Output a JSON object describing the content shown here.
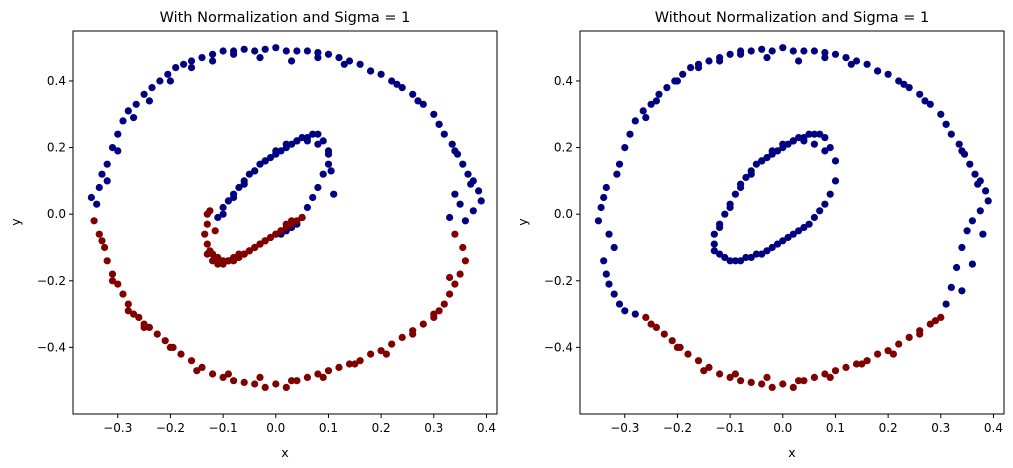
{
  "chart_data": [
    {
      "type": "scatter",
      "title": "With Normalization and Sigma = 1",
      "xlabel": "x",
      "ylabel": "y",
      "xlim": [
        -0.385,
        0.42
      ],
      "ylim": [
        -0.6,
        0.55
      ],
      "xticks": [
        -0.3,
        -0.2,
        -0.1,
        0.0,
        0.1,
        0.2,
        0.3,
        0.4
      ],
      "yticks": [
        -0.4,
        -0.2,
        0.0,
        0.2,
        0.4
      ],
      "xtick_labels": [
        "−0.3",
        "−0.2",
        "−0.1",
        "0.0",
        "0.1",
        "0.2",
        "0.3",
        "0.4"
      ],
      "ytick_labels": [
        "−0.4",
        "−0.2",
        "0.0",
        "0.2",
        "0.4"
      ],
      "grid": false,
      "legend": "none",
      "colors": {
        "class_0": "#000080",
        "class_1": "#800000"
      },
      "series": [
        {
          "color": "#000080",
          "x": [
            -0.35,
            -0.335,
            -0.33,
            -0.32,
            -0.31,
            -0.3,
            -0.29,
            -0.28,
            -0.265,
            -0.25,
            -0.235,
            -0.22,
            -0.205,
            -0.19,
            -0.175,
            -0.16,
            -0.14,
            -0.12,
            -0.1,
            -0.08,
            -0.06,
            -0.04,
            -0.02,
            0.0,
            0.02,
            0.04,
            0.06,
            0.08,
            0.1,
            0.12,
            0.14,
            0.16,
            0.18,
            0.2,
            0.22,
            0.24,
            0.26,
            0.28,
            0.3,
            0.31,
            0.32,
            0.335,
            0.345,
            0.355,
            0.365,
            0.375,
            0.385,
            0.39,
            0.375,
            0.36,
            0.35,
            0.34,
            0.33,
            -0.34,
            -0.32,
            -0.3,
            -0.27,
            -0.24,
            -0.2,
            -0.16,
            -0.12,
            -0.08,
            -0.03,
            0.03,
            0.08,
            0.13,
            0.18,
            0.23,
            0.27,
            0.31,
            0.34,
            0.37,
            -0.11,
            -0.1,
            -0.09,
            -0.08,
            -0.07,
            -0.06,
            -0.05,
            -0.04,
            -0.03,
            -0.02,
            -0.01,
            0.0,
            0.01,
            0.02,
            0.03,
            0.04,
            0.05,
            0.06,
            0.07,
            0.08,
            0.09,
            0.1,
            0.1,
            0.09,
            0.08,
            0.07,
            0.06,
            0.05,
            0.04,
            0.03,
            0.02,
            0.01,
            -0.1,
            -0.08,
            -0.06,
            -0.04,
            -0.02,
            0.0,
            0.02,
            0.04,
            0.06,
            0.08,
            0.1,
            0.105,
            0.11
          ],
          "y": [
            0.05,
            0.08,
            0.12,
            0.15,
            0.2,
            0.24,
            0.28,
            0.31,
            0.33,
            0.36,
            0.38,
            0.4,
            0.42,
            0.44,
            0.45,
            0.46,
            0.47,
            0.48,
            0.49,
            0.49,
            0.495,
            0.49,
            0.495,
            0.5,
            0.49,
            0.49,
            0.49,
            0.485,
            0.48,
            0.47,
            0.46,
            0.45,
            0.43,
            0.42,
            0.4,
            0.38,
            0.36,
            0.33,
            0.3,
            0.27,
            0.24,
            0.21,
            0.18,
            0.15,
            0.12,
            0.1,
            0.07,
            0.04,
            0.01,
            -0.02,
            0.03,
            0.06,
            -0.01,
            0.03,
            0.1,
            0.19,
            0.29,
            0.34,
            0.4,
            0.44,
            0.46,
            0.48,
            0.47,
            0.46,
            0.47,
            0.45,
            0.43,
            0.39,
            0.34,
            0.27,
            0.19,
            0.09,
            -0.01,
            0.02,
            0.04,
            0.06,
            0.08,
            0.1,
            0.12,
            0.13,
            0.15,
            0.16,
            0.17,
            0.18,
            0.19,
            0.2,
            0.21,
            0.22,
            0.23,
            0.23,
            0.24,
            0.24,
            0.22,
            0.18,
            0.15,
            0.12,
            0.08,
            0.05,
            0.02,
            -0.01,
            -0.03,
            -0.04,
            -0.05,
            -0.06,
            0.0,
            0.05,
            0.09,
            0.13,
            0.16,
            0.19,
            0.21,
            0.22,
            0.22,
            0.21,
            0.19,
            0.13,
            0.06
          ]
        },
        {
          "color": "#800000",
          "x": [
            -0.345,
            -0.335,
            -0.325,
            -0.32,
            -0.31,
            -0.3,
            -0.29,
            -0.28,
            -0.27,
            -0.26,
            -0.25,
            -0.24,
            -0.225,
            -0.21,
            -0.195,
            -0.18,
            -0.16,
            -0.14,
            -0.12,
            -0.1,
            -0.08,
            -0.06,
            -0.04,
            -0.02,
            0.0,
            0.02,
            0.04,
            0.06,
            0.08,
            0.1,
            0.12,
            0.14,
            0.16,
            0.18,
            0.2,
            0.22,
            0.24,
            0.26,
            0.28,
            0.3,
            0.31,
            0.32,
            0.33,
            0.34,
            0.35,
            0.36,
            0.355,
            0.34,
            -0.33,
            -0.31,
            -0.28,
            -0.25,
            -0.2,
            -0.15,
            -0.09,
            -0.03,
            0.03,
            0.09,
            0.15,
            0.21,
            0.26,
            0.3,
            0.33,
            -0.13,
            -0.13,
            -0.135,
            -0.13,
            -0.125,
            -0.12,
            -0.115,
            -0.11,
            -0.1,
            -0.09,
            -0.08,
            -0.07,
            -0.06,
            -0.05,
            -0.04,
            -0.03,
            -0.02,
            -0.01,
            0.0,
            0.01,
            0.02,
            0.03,
            0.04,
            0.05,
            -0.13,
            -0.12,
            -0.11,
            -0.1,
            -0.09,
            -0.08,
            -0.07,
            -0.06,
            -0.05,
            -0.04,
            -0.03,
            -0.02,
            -0.01,
            0.0,
            0.01,
            0.02,
            0.03,
            -0.125,
            -0.115
          ],
          "y": [
            -0.02,
            -0.06,
            -0.1,
            -0.14,
            -0.18,
            -0.21,
            -0.24,
            -0.27,
            -0.3,
            -0.31,
            -0.33,
            -0.34,
            -0.36,
            -0.38,
            -0.4,
            -0.42,
            -0.44,
            -0.46,
            -0.48,
            -0.49,
            -0.5,
            -0.505,
            -0.51,
            -0.52,
            -0.51,
            -0.52,
            -0.5,
            -0.49,
            -0.48,
            -0.47,
            -0.46,
            -0.45,
            -0.44,
            -0.42,
            -0.41,
            -0.39,
            -0.37,
            -0.35,
            -0.33,
            -0.31,
            -0.29,
            -0.27,
            -0.24,
            -0.21,
            -0.18,
            -0.14,
            -0.1,
            -0.06,
            -0.08,
            -0.2,
            -0.29,
            -0.34,
            -0.4,
            -0.47,
            -0.48,
            -0.49,
            -0.5,
            -0.49,
            -0.45,
            -0.42,
            -0.36,
            -0.3,
            -0.19,
            0.0,
            -0.03,
            -0.06,
            -0.09,
            -0.11,
            -0.12,
            -0.13,
            -0.13,
            -0.14,
            -0.14,
            -0.13,
            -0.12,
            -0.12,
            -0.11,
            -0.1,
            -0.09,
            -0.08,
            -0.07,
            -0.06,
            -0.05,
            -0.04,
            -0.03,
            -0.02,
            -0.01,
            -0.12,
            -0.14,
            -0.15,
            -0.15,
            -0.14,
            -0.14,
            -0.13,
            -0.12,
            -0.11,
            -0.1,
            -0.09,
            -0.08,
            -0.07,
            -0.06,
            -0.05,
            -0.03,
            -0.02,
            0.01,
            -0.05
          ]
        }
      ]
    },
    {
      "type": "scatter",
      "title": "Without Normalization and Sigma = 1",
      "xlabel": "x",
      "ylabel": "y",
      "xlim": [
        -0.385,
        0.42
      ],
      "ylim": [
        -0.6,
        0.55
      ],
      "xticks": [
        -0.3,
        -0.2,
        -0.1,
        0.0,
        0.1,
        0.2,
        0.3,
        0.4
      ],
      "yticks": [
        -0.4,
        -0.2,
        0.0,
        0.2,
        0.4
      ],
      "xtick_labels": [
        "−0.3",
        "−0.2",
        "−0.1",
        "0.0",
        "0.1",
        "0.2",
        "0.3",
        "0.4"
      ],
      "ytick_labels": [
        "−0.4",
        "−0.2",
        "0.0",
        "0.2",
        "0.4"
      ],
      "grid": false,
      "legend": "none",
      "colors": {
        "class_0": "#000080",
        "class_1": "#800000"
      },
      "series": [
        {
          "color": "#000080",
          "x": [
            -0.35,
            -0.345,
            -0.34,
            -0.335,
            -0.33,
            -0.32,
            -0.315,
            -0.31,
            -0.3,
            -0.29,
            -0.28,
            -0.265,
            -0.25,
            -0.235,
            -0.22,
            -0.205,
            -0.19,
            -0.175,
            -0.16,
            -0.14,
            -0.12,
            -0.1,
            -0.08,
            -0.06,
            -0.04,
            -0.02,
            0.0,
            0.02,
            0.04,
            0.06,
            0.08,
            0.1,
            0.12,
            0.14,
            0.16,
            0.18,
            0.2,
            0.22,
            0.24,
            0.26,
            0.28,
            0.3,
            0.31,
            0.32,
            0.335,
            0.345,
            0.355,
            0.365,
            0.375,
            0.385,
            0.39,
            0.375,
            0.36,
            0.35,
            0.34,
            0.33,
            0.32,
            0.31,
            -0.34,
            -0.335,
            -0.33,
            -0.32,
            -0.31,
            -0.3,
            -0.28,
            -0.26,
            -0.24,
            -0.2,
            -0.16,
            -0.12,
            -0.08,
            -0.03,
            0.03,
            0.08,
            0.13,
            0.18,
            0.23,
            0.27,
            0.31,
            0.34,
            0.37,
            0.38,
            0.36,
            0.34,
            -0.13,
            -0.13,
            -0.12,
            -0.11,
            -0.1,
            -0.09,
            -0.08,
            -0.07,
            -0.06,
            -0.05,
            -0.04,
            -0.03,
            -0.02,
            -0.01,
            0.0,
            0.01,
            0.02,
            0.03,
            0.04,
            0.05,
            0.06,
            0.07,
            0.08,
            0.09,
            0.1,
            0.1,
            0.09,
            0.08,
            0.07,
            0.06,
            0.05,
            0.04,
            0.03,
            0.02,
            0.01,
            0.0,
            -0.01,
            -0.02,
            -0.03,
            -0.04,
            -0.05,
            -0.06,
            -0.07,
            -0.08,
            -0.09,
            -0.1,
            -0.11,
            -0.12,
            -0.13,
            -0.12,
            -0.1,
            -0.08,
            -0.06,
            -0.04,
            -0.02,
            0.0,
            0.02,
            0.04,
            0.06,
            0.08
          ],
          "y": [
            -0.02,
            0.02,
            0.05,
            0.08,
            -0.06,
            -0.1,
            0.12,
            0.15,
            0.2,
            0.24,
            0.28,
            0.31,
            0.33,
            0.36,
            0.38,
            0.4,
            0.42,
            0.44,
            0.45,
            0.46,
            0.47,
            0.48,
            0.49,
            0.49,
            0.495,
            0.49,
            0.5,
            0.49,
            0.49,
            0.49,
            0.485,
            0.48,
            0.47,
            0.46,
            0.45,
            0.43,
            0.42,
            0.4,
            0.38,
            0.36,
            0.33,
            0.3,
            0.27,
            0.24,
            0.21,
            0.18,
            0.15,
            0.12,
            0.1,
            0.07,
            0.04,
            0.01,
            -0.02,
            -0.05,
            -0.1,
            -0.16,
            -0.22,
            -0.27,
            -0.14,
            -0.18,
            -0.21,
            -0.24,
            -0.27,
            -0.29,
            -0.3,
            0.29,
            0.34,
            0.4,
            0.44,
            0.46,
            0.48,
            0.47,
            0.46,
            0.47,
            0.45,
            0.43,
            0.39,
            0.34,
            0.27,
            0.19,
            0.09,
            -0.06,
            -0.15,
            -0.23,
            -0.09,
            -0.06,
            -0.03,
            0.0,
            0.03,
            0.06,
            0.09,
            0.11,
            0.13,
            0.15,
            0.16,
            0.17,
            0.18,
            0.19,
            0.2,
            0.21,
            0.22,
            0.23,
            0.23,
            0.24,
            0.24,
            0.24,
            0.23,
            0.2,
            0.16,
            0.1,
            0.06,
            0.03,
            0.01,
            -0.01,
            -0.03,
            -0.04,
            -0.05,
            -0.06,
            -0.07,
            -0.08,
            -0.09,
            -0.1,
            -0.11,
            -0.12,
            -0.12,
            -0.13,
            -0.13,
            -0.14,
            -0.14,
            -0.14,
            -0.13,
            -0.12,
            -0.11,
            -0.04,
            0.02,
            0.08,
            0.12,
            0.16,
            0.19,
            0.21,
            0.22,
            0.22,
            0.21,
            0.19
          ]
        },
        {
          "color": "#800000",
          "x": [
            -0.26,
            -0.24,
            -0.225,
            -0.21,
            -0.195,
            -0.18,
            -0.16,
            -0.14,
            -0.12,
            -0.1,
            -0.08,
            -0.06,
            -0.04,
            -0.02,
            0.0,
            0.02,
            0.04,
            0.06,
            0.08,
            0.1,
            0.12,
            0.14,
            0.16,
            0.18,
            0.2,
            0.22,
            0.24,
            0.26,
            0.28,
            0.3,
            -0.25,
            -0.2,
            -0.15,
            -0.09,
            -0.03,
            0.03,
            0.09,
            0.15,
            0.21,
            0.26,
            0.29
          ],
          "y": [
            -0.31,
            -0.34,
            -0.36,
            -0.38,
            -0.4,
            -0.42,
            -0.44,
            -0.46,
            -0.48,
            -0.49,
            -0.5,
            -0.505,
            -0.51,
            -0.52,
            -0.51,
            -0.52,
            -0.5,
            -0.49,
            -0.48,
            -0.47,
            -0.46,
            -0.45,
            -0.44,
            -0.42,
            -0.41,
            -0.39,
            -0.37,
            -0.35,
            -0.33,
            -0.31,
            -0.33,
            -0.4,
            -0.47,
            -0.48,
            -0.49,
            -0.5,
            -0.49,
            -0.45,
            -0.42,
            -0.36,
            -0.32
          ]
        }
      ]
    }
  ]
}
